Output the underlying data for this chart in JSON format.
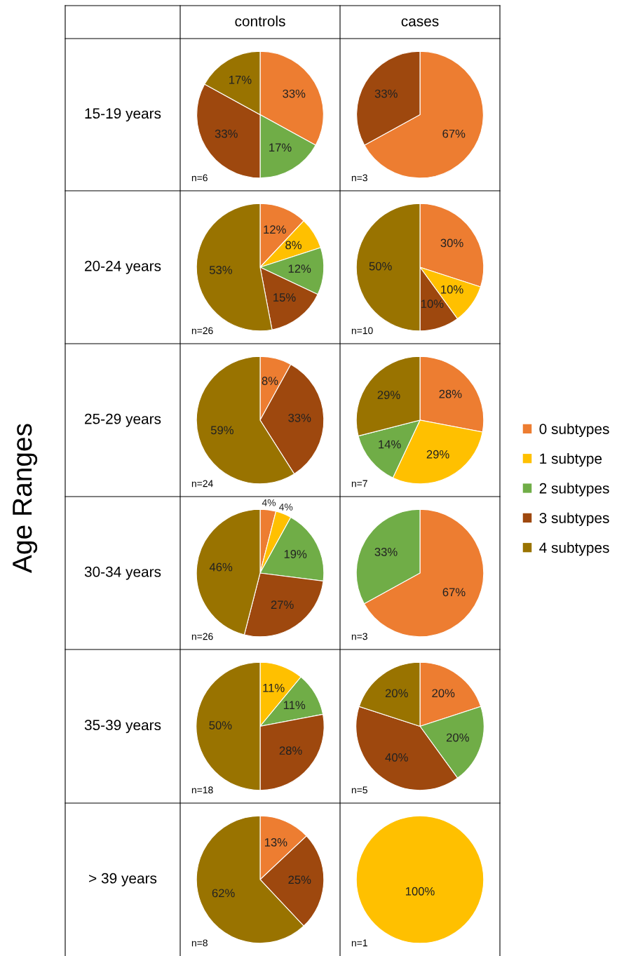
{
  "chart_data": [
    {
      "type": "pie",
      "title": "controls",
      "ylabel": "15-19 years",
      "values": [
        33,
        17,
        33,
        17
      ],
      "colors": [
        "#ed7d31",
        "#70ad47",
        "#9e480e",
        "#997300"
      ],
      "value_labels": [
        "33%",
        "17%",
        "33%",
        "17%"
      ],
      "annotations": [
        "Age Ranges",
        "n=6"
      ]
    },
    {
      "type": "pie",
      "title": "cases",
      "values": [
        67,
        33
      ],
      "colors": [
        "#ed7d31",
        "#9e480e"
      ],
      "value_labels": [
        "67%",
        "33%"
      ],
      "annotations": [
        "n=3"
      ]
    },
    {
      "type": "pie",
      "ylabel": "20-24 years",
      "legend": "right",
      "categories": [
        "0 subtypes",
        "1 subtype",
        "2 subtypes",
        "3 subtypes",
        "4 subtypes"
      ],
      "values": [
        12,
        8,
        12,
        15,
        53
      ],
      "colors": [
        "#ed7d31",
        "#ffc000",
        "#70ad47",
        "#9e480e",
        "#997300"
      ],
      "value_labels": [
        "12%",
        "8%",
        "12%",
        "15%",
        "53%"
      ],
      "annotations": [
        "n=26"
      ]
    },
    {
      "type": "pie",
      "values": [
        30,
        10,
        10,
        50
      ],
      "colors": [
        "#ed7d31",
        "#ffc000",
        "#9e480e",
        "#997300"
      ],
      "value_labels": [
        "30%",
        "10%",
        "10%",
        "50%"
      ],
      "annotations": [
        "n=10"
      ]
    },
    {
      "type": "pie",
      "ylabel": "25-29 years",
      "values": [
        8,
        33,
        59
      ],
      "colors": [
        "#ed7d31",
        "#9e480e",
        "#997300"
      ],
      "value_labels": [
        "8%",
        "33%",
        "59%"
      ],
      "annotations": [
        "n=24"
      ]
    },
    {
      "type": "pie",
      "values": [
        28,
        29,
        14,
        29
      ],
      "colors": [
        "#ed7d31",
        "#ffc000",
        "#70ad47",
        "#997300"
      ],
      "value_labels": [
        "28%",
        "29%",
        "14%",
        "29%"
      ],
      "annotations": [
        "n=7"
      ]
    },
    {
      "type": "pie",
      "ylabel": "30-34 years",
      "values": [
        4,
        4,
        19,
        27,
        46
      ],
      "colors": [
        "#ed7d31",
        "#ffc000",
        "#70ad47",
        "#9e480e",
        "#997300"
      ],
      "value_labels": [
        "4%",
        "4%",
        "19%",
        "27%",
        "46%"
      ],
      "annotations": [
        "n=26"
      ]
    },
    {
      "type": "pie",
      "values": [
        67,
        33
      ],
      "colors": [
        "#ed7d31",
        "#70ad47"
      ],
      "value_labels": [
        "67%",
        "33%"
      ],
      "annotations": [
        "n=3"
      ]
    },
    {
      "type": "pie",
      "ylabel": "35-39 years",
      "values": [
        11,
        11,
        28,
        50
      ],
      "colors": [
        "#ffc000",
        "#70ad47",
        "#9e480e",
        "#997300"
      ],
      "value_labels": [
        "11%",
        "11%",
        "28%",
        "50%"
      ],
      "annotations": [
        "n=18"
      ]
    },
    {
      "type": "pie",
      "values": [
        20,
        20,
        40,
        20
      ],
      "colors": [
        "#ed7d31",
        "#70ad47",
        "#9e480e",
        "#997300"
      ],
      "value_labels": [
        "20%",
        "20%",
        "40%",
        "20%"
      ],
      "annotations": [
        "n=5"
      ]
    },
    {
      "type": "pie",
      "ylabel": "> 39 years",
      "values": [
        13,
        25,
        62
      ],
      "colors": [
        "#ed7d31",
        "#9e480e",
        "#997300"
      ],
      "value_labels": [
        "13%",
        "25%",
        "62%"
      ],
      "annotations": [
        "n=8"
      ]
    },
    {
      "type": "pie",
      "values": [
        100
      ],
      "colors": [
        "#ffc000"
      ],
      "value_labels": [
        "100%"
      ],
      "annotations": [
        "n=1"
      ]
    }
  ]
}
